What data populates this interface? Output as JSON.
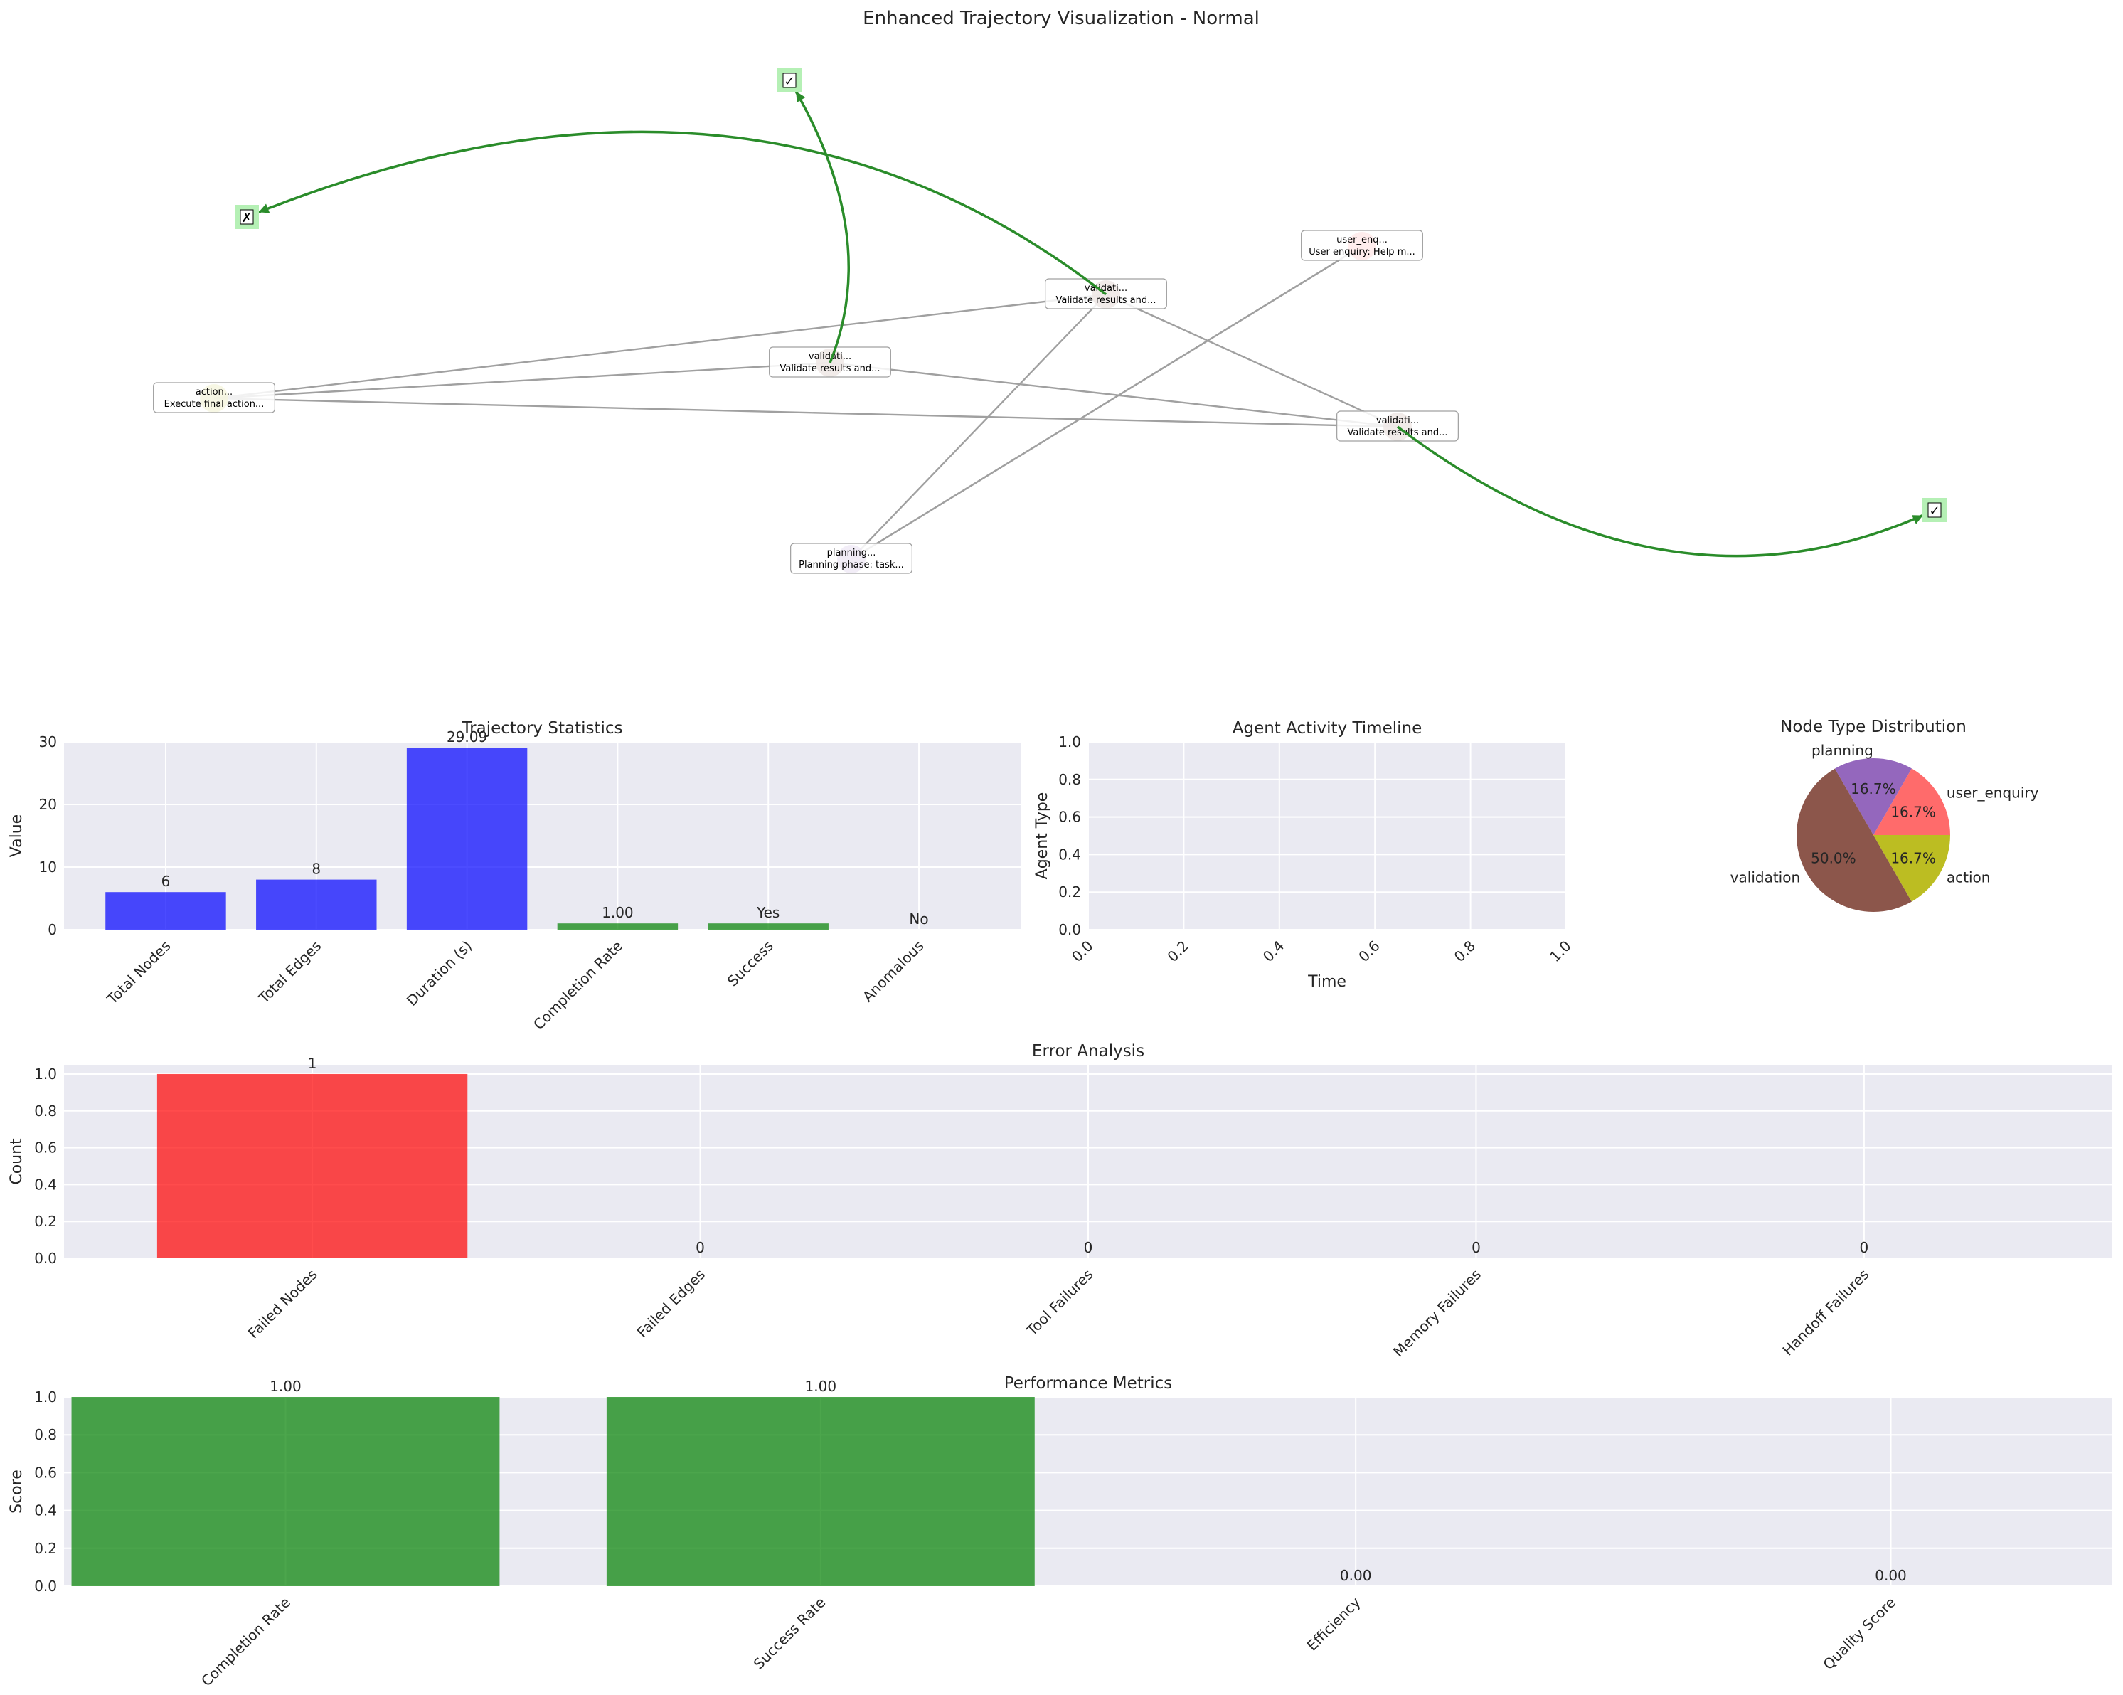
{
  "figure_title": "Enhanced Trajectory Visualization - Normal",
  "graph": {
    "nodes": [
      {
        "id": "user_enquiry",
        "type": "user_enquiry",
        "line1": "user_enq...",
        "line2": "User enquiry: Help m...",
        "color": "#ff6b6b"
      },
      {
        "id": "planning",
        "type": "planning",
        "line1": "planning...",
        "line2": "Planning phase: task...",
        "color": "#9467bd"
      },
      {
        "id": "validation_1",
        "type": "validation",
        "line1": "validati...",
        "line2": "Validate results and...",
        "color": "#8c564b"
      },
      {
        "id": "validation_2",
        "type": "validation",
        "line1": "validati...",
        "line2": "Validate results and...",
        "color": "#8c564b"
      },
      {
        "id": "validation_3",
        "type": "validation",
        "line1": "validati...",
        "line2": "Validate results and...",
        "color": "#8c564b"
      },
      {
        "id": "action",
        "type": "action",
        "line1": "action...",
        "line2": "Execute final action...",
        "color": "#bcbd22"
      }
    ],
    "edges": [
      {
        "from": "planning",
        "to": "validation_1"
      },
      {
        "from": "planning",
        "to": "user_enquiry"
      },
      {
        "from": "validation_1",
        "to": "validation_3"
      },
      {
        "from": "validation_1",
        "to": "action"
      },
      {
        "from": "validation_2",
        "to": "validation_3"
      },
      {
        "from": "validation_2",
        "to": "action"
      },
      {
        "from": "validation_3",
        "to": "action"
      },
      {
        "from": "user_enquiry",
        "to": "planning"
      }
    ],
    "outcome_markers": [
      {
        "id": "success-top",
        "glyph": "✓",
        "from": "validation_2"
      },
      {
        "id": "failure-left",
        "glyph": "✗",
        "from": "validation_1"
      },
      {
        "id": "success-right",
        "glyph": "✓",
        "from": "validation_3"
      }
    ],
    "edge_color": "#a0a0a0",
    "outcome_edge_color": "#2a8c2a",
    "marker_fill": "#b5f0b5"
  },
  "chart_data": [
    {
      "id": "trajectory-statistics",
      "type": "bar",
      "title": "Trajectory Statistics",
      "ylabel": "Value",
      "ylim": [
        0,
        30
      ],
      "yticks": [
        0,
        10,
        20,
        30
      ],
      "categories": [
        "Total Nodes",
        "Total Edges",
        "Duration (s)",
        "Completion Rate",
        "Success",
        "Anomalous"
      ],
      "values": [
        6,
        8,
        29.09,
        1.0,
        1,
        0
      ],
      "value_labels": [
        "6",
        "8",
        "29.09",
        "1.00",
        "Yes",
        "No"
      ],
      "colors": [
        "#0000ff",
        "#0000ff",
        "#0000ff",
        "#008000",
        "#008000",
        "#ff0000"
      ]
    },
    {
      "id": "agent-activity-timeline",
      "type": "scatter",
      "title": "Agent Activity Timeline",
      "xlabel": "Time",
      "ylabel": "Agent Type",
      "xlim": [
        0,
        1
      ],
      "ylim": [
        0,
        1
      ],
      "xticks": [
        "0.0",
        "0.2",
        "0.4",
        "0.6",
        "0.8",
        "1.0"
      ],
      "yticks": [
        "0.0",
        "0.2",
        "0.4",
        "0.6",
        "0.8",
        "1.0"
      ],
      "points": []
    },
    {
      "id": "node-type-distribution",
      "type": "pie",
      "title": "Node Type Distribution",
      "slices": [
        {
          "label": "user_enquiry",
          "value": 16.7,
          "pct": "16.7%",
          "color": "#ff6b6b"
        },
        {
          "label": "planning",
          "value": 16.7,
          "pct": "16.7%",
          "color": "#9467bd"
        },
        {
          "label": "validation",
          "value": 50.0,
          "pct": "50.0%",
          "color": "#8c564b"
        },
        {
          "label": "action",
          "value": 16.7,
          "pct": "16.7%",
          "color": "#bcbd22"
        }
      ]
    },
    {
      "id": "error-analysis",
      "type": "bar",
      "title": "Error Analysis",
      "ylabel": "Count",
      "ylim": [
        0,
        1.05
      ],
      "yticks": [
        "0.0",
        "0.2",
        "0.4",
        "0.6",
        "0.8",
        "1.0"
      ],
      "categories": [
        "Failed Nodes",
        "Failed Edges",
        "Tool Failures",
        "Memory Failures",
        "Handoff Failures"
      ],
      "values": [
        1,
        0,
        0,
        0,
        0
      ],
      "value_labels": [
        "1",
        "0",
        "0",
        "0",
        "0"
      ],
      "colors": [
        "#ff0000",
        "#ff0000",
        "#ff0000",
        "#ff0000",
        "#ff0000"
      ]
    },
    {
      "id": "performance-metrics",
      "type": "bar",
      "title": "Performance Metrics",
      "ylabel": "Score",
      "ylim": [
        0,
        1.0
      ],
      "yticks": [
        "0.0",
        "0.2",
        "0.4",
        "0.6",
        "0.8",
        "1.0"
      ],
      "categories": [
        "Completion Rate",
        "Success Rate",
        "Efficiency",
        "Quality Score"
      ],
      "values": [
        1.0,
        1.0,
        0.0,
        0.0
      ],
      "value_labels": [
        "1.00",
        "1.00",
        "0.00",
        "0.00"
      ],
      "colors": [
        "#008000",
        "#008000",
        "#008000",
        "#008000"
      ]
    }
  ]
}
